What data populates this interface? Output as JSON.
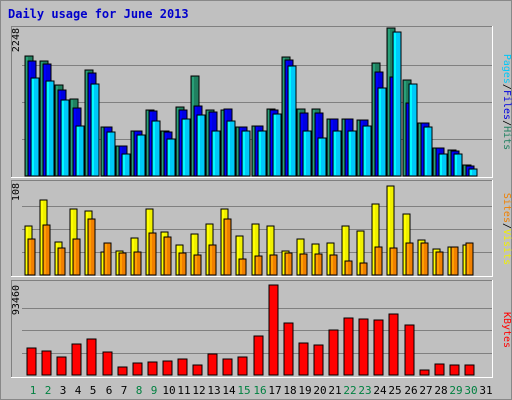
{
  "title": "Daily usage for June 2013",
  "chart_data": [
    {
      "type": "bar",
      "panel": "pages-files-hits",
      "axis_max_label": "2248",
      "ylim": [
        0,
        2248
      ],
      "categories": [
        "1",
        "2",
        "3",
        "4",
        "5",
        "6",
        "7",
        "8",
        "9",
        "10",
        "11",
        "12",
        "13",
        "14",
        "15",
        "16",
        "17",
        "18",
        "19",
        "20",
        "21",
        "22",
        "23",
        "24",
        "25",
        "26",
        "27",
        "28",
        "29",
        "30",
        "31"
      ],
      "legend": [
        {
          "key": "pages",
          "label": "Pages",
          "color": "#00c8f8"
        },
        {
          "key": "sep1",
          "label": "/",
          "color": "#000000"
        },
        {
          "key": "files",
          "label": "Files",
          "color": "#0000e0"
        },
        {
          "key": "sep2",
          "label": "/",
          "color": "#000000"
        },
        {
          "key": "hits",
          "label": "Hits",
          "color": "#208060"
        }
      ],
      "series": [
        {
          "name": "Hits",
          "color": "#208060",
          "values": [
            1820,
            1740,
            1380,
            1170,
            1610,
            740,
            460,
            690,
            1000,
            690,
            1050,
            1520,
            1000,
            1000,
            750,
            760,
            1020,
            1810,
            1020,
            1020,
            860,
            860,
            850,
            1720,
            2248,
            1460,
            810,
            420,
            390,
            160,
            0
          ]
        },
        {
          "name": "Files",
          "color": "#0000e0",
          "values": [
            1740,
            1700,
            1310,
            1030,
            1560,
            740,
            460,
            690,
            980,
            670,
            1000,
            1070,
            970,
            1020,
            750,
            760,
            1000,
            1760,
            950,
            950,
            860,
            860,
            850,
            1580,
            1500,
            1110,
            800,
            420,
            380,
            150,
            0
          ]
        },
        {
          "name": "Pages",
          "color": "#00c8f8",
          "values": [
            1490,
            1440,
            1160,
            760,
            1390,
            670,
            330,
            630,
            840,
            560,
            870,
            920,
            690,
            840,
            680,
            690,
            940,
            1670,
            690,
            570,
            690,
            680,
            760,
            1340,
            2190,
            1390,
            750,
            330,
            330,
            110,
            0
          ]
        }
      ]
    },
    {
      "type": "bar",
      "panel": "visits-sites",
      "axis_max_label": "108",
      "ylim": [
        0,
        108
      ],
      "categories": [
        "1",
        "2",
        "3",
        "4",
        "5",
        "6",
        "7",
        "8",
        "9",
        "10",
        "11",
        "12",
        "13",
        "14",
        "15",
        "16",
        "17",
        "18",
        "19",
        "20",
        "21",
        "22",
        "23",
        "24",
        "25",
        "26",
        "27",
        "28",
        "29",
        "30",
        "31"
      ],
      "legend": [
        {
          "key": "sites",
          "label": "Sites",
          "color": "#f08000"
        },
        {
          "key": "sep1",
          "label": "/",
          "color": "#000000"
        },
        {
          "key": "visits",
          "label": "Visits",
          "color": "#f0f000"
        }
      ],
      "series": [
        {
          "name": "Visits",
          "color": "#f0f000",
          "values": [
            57,
            88,
            39,
            77,
            75,
            27,
            28,
            44,
            77,
            51,
            35,
            48,
            60,
            78,
            46,
            60,
            58,
            28,
            42,
            36,
            38,
            57,
            52,
            83,
            104,
            72,
            41,
            30,
            33,
            35,
            0
          ]
        },
        {
          "name": "Sites",
          "color": "#f08000",
          "values": [
            42,
            59,
            32,
            42,
            66,
            37,
            26,
            27,
            49,
            45,
            26,
            23,
            35,
            66,
            19,
            22,
            24,
            26,
            25,
            25,
            24,
            17,
            14,
            33,
            32,
            38,
            38,
            27,
            33,
            37,
            0
          ]
        }
      ]
    },
    {
      "type": "bar",
      "panel": "kbytes",
      "axis_max_label": "93460",
      "ylim": [
        0,
        93460
      ],
      "categories": [
        "1",
        "2",
        "3",
        "4",
        "5",
        "6",
        "7",
        "8",
        "9",
        "10",
        "11",
        "12",
        "13",
        "14",
        "15",
        "16",
        "17",
        "18",
        "19",
        "20",
        "21",
        "22",
        "23",
        "24",
        "25",
        "26",
        "27",
        "28",
        "29",
        "30",
        "31"
      ],
      "legend": [
        {
          "key": "kbytes",
          "label": "KBytes",
          "color": "#ff0000"
        }
      ],
      "series": [
        {
          "name": "KBytes",
          "color": "#ff0000",
          "values": [
            28000,
            25000,
            19000,
            32000,
            37000,
            24000,
            8000,
            12000,
            14000,
            15000,
            17000,
            10000,
            22000,
            17000,
            19000,
            41000,
            93460,
            54000,
            33000,
            31000,
            47000,
            59000,
            58000,
            57000,
            63000,
            52000,
            5000,
            11000,
            10000,
            10000,
            0
          ]
        }
      ]
    }
  ]
}
